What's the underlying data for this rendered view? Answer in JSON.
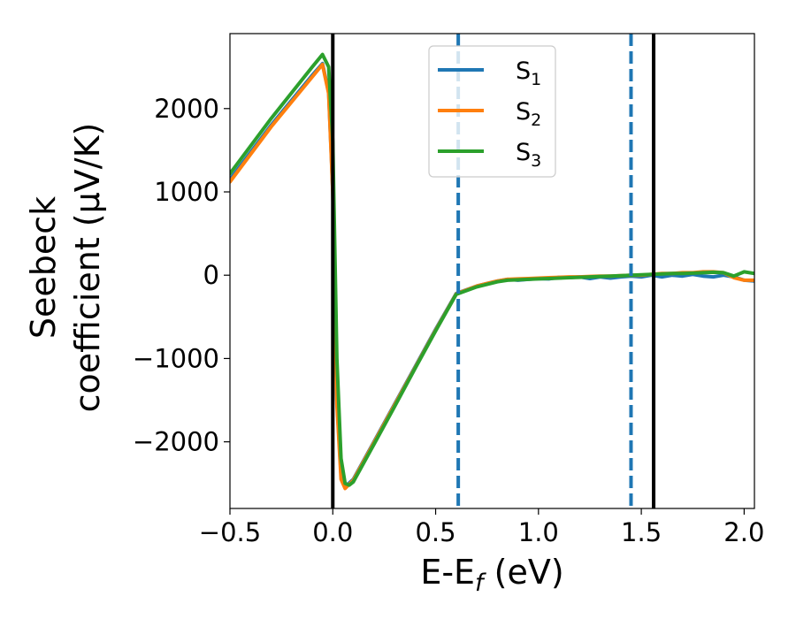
{
  "chart_data": {
    "type": "line",
    "title": "",
    "xlabel": "E-E_f (eV)",
    "ylabel": {
      "line1": "Seebeck",
      "line2": "coefficient  (μV/K)"
    },
    "xlim": [
      -0.5,
      2.05
    ],
    "ylim": [
      -2800,
      2900
    ],
    "xticks": [
      -0.5,
      0.0,
      0.5,
      1.0,
      1.5,
      2.0
    ],
    "xtick_labels": [
      "−0.5",
      "0.0",
      "0.5",
      "1.0",
      "1.5",
      "2.0"
    ],
    "yticks": [
      -2000,
      -1000,
      0,
      1000,
      2000
    ],
    "ytick_labels": [
      "−2000",
      "−1000",
      "0",
      "1000",
      "2000"
    ],
    "grid": false,
    "legend_position": "top-center",
    "vertical_lines": [
      {
        "x": 0.0,
        "style": "solid",
        "color": "#000000"
      },
      {
        "x": 0.61,
        "style": "dashed",
        "color": "#1f77b4"
      },
      {
        "x": 1.45,
        "style": "dashed",
        "color": "#1f77b4"
      },
      {
        "x": 1.56,
        "style": "solid",
        "color": "#000000"
      }
    ],
    "series": [
      {
        "name": "S1",
        "color": "#1f77b4",
        "x": [
          -0.5,
          -0.3,
          -0.1,
          -0.05,
          -0.02,
          0.0,
          0.02,
          0.04,
          0.06,
          0.1,
          0.2,
          0.3,
          0.4,
          0.5,
          0.6,
          0.7,
          0.75,
          0.8,
          0.85,
          0.9,
          0.95,
          1.0,
          1.05,
          1.1,
          1.15,
          1.2,
          1.25,
          1.3,
          1.35,
          1.4,
          1.45,
          1.5,
          1.55,
          1.6,
          1.65,
          1.7,
          1.75,
          1.8,
          1.85,
          1.9,
          1.95,
          2.0,
          2.05
        ],
        "y": [
          1150,
          1800,
          2400,
          2540,
          2200,
          1000,
          -1500,
          -2400,
          -2540,
          -2450,
          -2000,
          -1550,
          -1100,
          -650,
          -220,
          -130,
          -100,
          -70,
          -50,
          -60,
          -50,
          -40,
          -45,
          -25,
          -30,
          -20,
          -40,
          -20,
          -35,
          -20,
          -10,
          -20,
          0,
          -20,
          0,
          -10,
          10,
          -10,
          -20,
          0,
          -20,
          -60,
          -70
        ]
      },
      {
        "name": "S2",
        "color": "#ff7f0e",
        "x": [
          -0.5,
          -0.3,
          -0.1,
          -0.05,
          -0.02,
          0.0,
          0.02,
          0.04,
          0.06,
          0.1,
          0.2,
          0.3,
          0.4,
          0.5,
          0.6,
          0.7,
          0.75,
          0.8,
          0.85,
          0.9,
          0.95,
          1.0,
          1.05,
          1.1,
          1.15,
          1.2,
          1.25,
          1.3,
          1.35,
          1.4,
          1.45,
          1.5,
          1.55,
          1.6,
          1.65,
          1.7,
          1.75,
          1.8,
          1.85,
          1.9,
          1.95,
          2.0,
          2.05
        ],
        "y": [
          1120,
          1780,
          2380,
          2530,
          2180,
          980,
          -1550,
          -2450,
          -2560,
          -2460,
          -2010,
          -1560,
          -1110,
          -660,
          -225,
          -130,
          -100,
          -70,
          -50,
          -45,
          -40,
          -35,
          -30,
          -25,
          -20,
          -20,
          -15,
          -10,
          -10,
          -5,
          0,
          0,
          10,
          20,
          20,
          30,
          30,
          40,
          40,
          30,
          -30,
          -60,
          -60
        ]
      },
      {
        "name": "S3",
        "color": "#2ca02c",
        "x": [
          -0.5,
          -0.3,
          -0.1,
          -0.05,
          -0.02,
          0.0,
          0.02,
          0.04,
          0.06,
          0.08,
          0.1,
          0.2,
          0.3,
          0.4,
          0.5,
          0.6,
          0.7,
          0.75,
          0.8,
          0.85,
          0.9,
          0.95,
          1.0,
          1.05,
          1.1,
          1.15,
          1.2,
          1.25,
          1.3,
          1.35,
          1.4,
          1.45,
          1.5,
          1.55,
          1.6,
          1.65,
          1.7,
          1.75,
          1.8,
          1.85,
          1.9,
          1.95,
          2.0,
          2.05
        ],
        "y": [
          1220,
          1880,
          2500,
          2650,
          2500,
          1600,
          -1000,
          -2200,
          -2500,
          -2520,
          -2480,
          -2030,
          -1580,
          -1120,
          -670,
          -230,
          -140,
          -110,
          -80,
          -60,
          -55,
          -50,
          -45,
          -40,
          -35,
          -30,
          -25,
          -20,
          -15,
          -10,
          -5,
          0,
          5,
          10,
          15,
          20,
          20,
          25,
          30,
          35,
          30,
          -10,
          40,
          20
        ]
      }
    ]
  }
}
